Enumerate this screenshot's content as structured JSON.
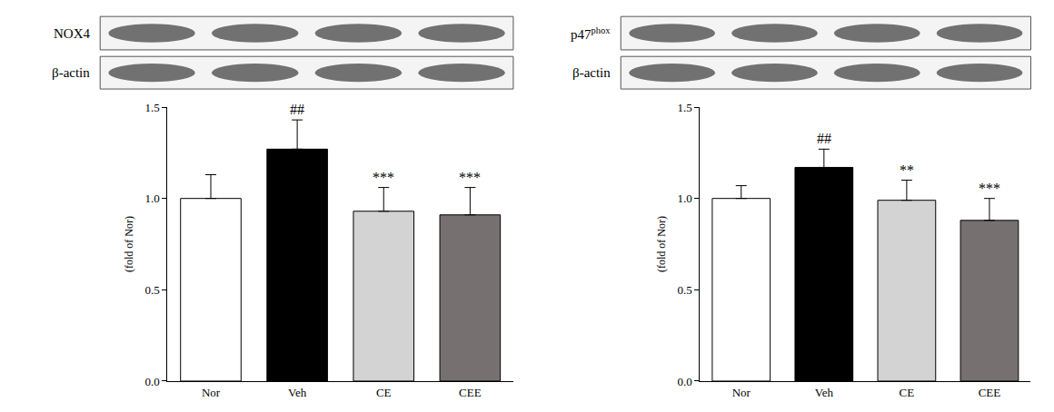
{
  "chart_data": [
    {
      "type": "bar",
      "categories": [
        "Nor",
        "Veh",
        "CE",
        "CEE"
      ],
      "values": [
        1.0,
        1.27,
        0.93,
        0.91
      ],
      "errors": [
        0.13,
        0.16,
        0.13,
        0.15
      ],
      "significance": [
        null,
        "##",
        "***",
        "***"
      ],
      "colors": [
        "#ffffff",
        "#000000",
        "#d3d3d3",
        "#767170"
      ],
      "y_label": "(fold of Nor)",
      "ylim": [
        0,
        1.5
      ],
      "yticks": [
        {
          "value": 0,
          "label": "0.0"
        },
        {
          "value": 0.5,
          "label": "0.5"
        },
        {
          "value": 1,
          "label": "1.0"
        },
        {
          "value": 1.5,
          "label": "1.5"
        }
      ],
      "grid": false,
      "blots": [
        {
          "label": "NOX4"
        },
        {
          "label": "β-actin"
        }
      ]
    },
    {
      "type": "bar",
      "categories": [
        "Nor",
        "Veh",
        "CE",
        "CEE"
      ],
      "values": [
        1.0,
        1.17,
        0.99,
        0.88
      ],
      "errors": [
        0.07,
        0.1,
        0.11,
        0.12
      ],
      "significance": [
        null,
        "##",
        "**",
        "***"
      ],
      "colors": [
        "#ffffff",
        "#000000",
        "#d3d3d3",
        "#767170"
      ],
      "y_label": "(fold of Nor)",
      "ylim": [
        0,
        1.5
      ],
      "yticks": [
        {
          "value": 0,
          "label": "0.0"
        },
        {
          "value": 0.5,
          "label": "0.5"
        },
        {
          "value": 1,
          "label": "1.0"
        },
        {
          "value": 1.5,
          "label": "1.5"
        }
      ],
      "grid": false,
      "blots": [
        {
          "label": "p47",
          "label_sup": "phox"
        },
        {
          "label": "β-actin"
        }
      ]
    }
  ]
}
